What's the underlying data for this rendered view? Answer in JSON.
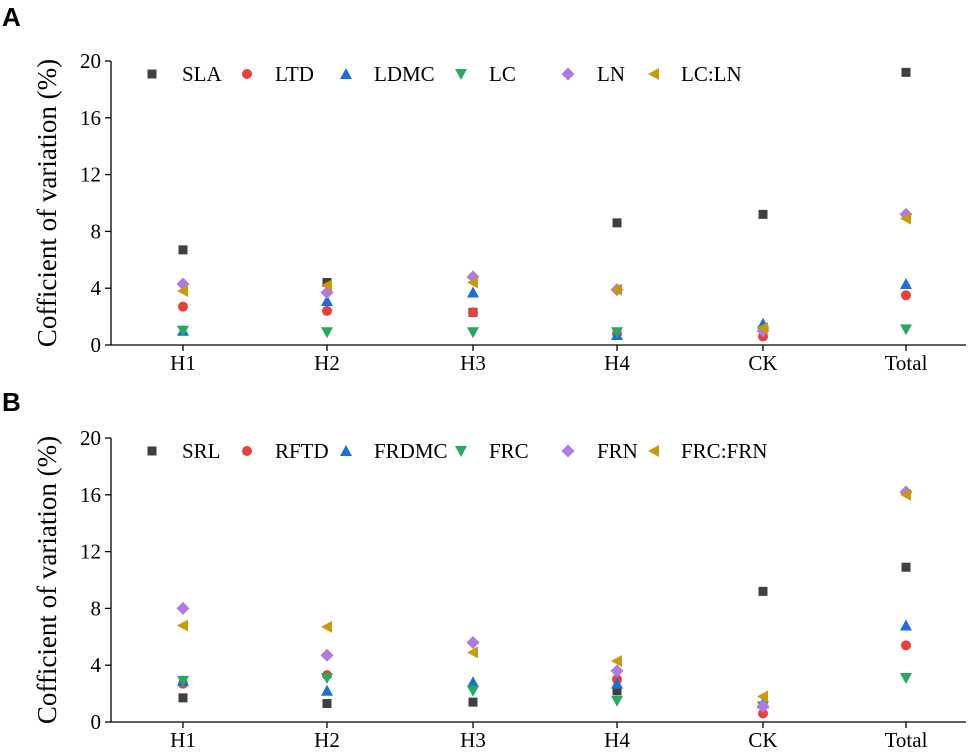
{
  "colors": {
    "marker_colors": [
      "#404040",
      "#e8413c",
      "#1c6fd6",
      "#26a961",
      "#b07be0",
      "#c99a0a"
    ],
    "marker_shapes": [
      "square",
      "circle",
      "triangle-up",
      "triangle-down",
      "diamond",
      "triangle-left"
    ]
  },
  "chart_data": [
    {
      "type": "scatter",
      "panel_label": "A",
      "ylabel": "Cofficient of variation (%)",
      "xlabel": "",
      "categories": [
        "H1",
        "H2",
        "H3",
        "H4",
        "CK",
        "Total"
      ],
      "ylim": [
        0,
        20
      ],
      "yticks": [
        "0",
        "4",
        "8",
        "12",
        "16",
        "20"
      ],
      "grid": false,
      "legend_position": "top-left, single row",
      "series": [
        {
          "name": "SLA",
          "values": [
            6.7,
            4.4,
            2.3,
            8.6,
            9.2,
            19.2
          ]
        },
        {
          "name": "LTD",
          "values": [
            2.7,
            2.4,
            2.3,
            0.8,
            0.6,
            3.5
          ]
        },
        {
          "name": "LDMC",
          "values": [
            1.0,
            3.1,
            3.7,
            0.7,
            1.5,
            4.3
          ]
        },
        {
          "name": "LC",
          "values": [
            1.0,
            0.9,
            0.9,
            0.9,
            1.0,
            1.1
          ]
        },
        {
          "name": "LN",
          "values": [
            4.3,
            3.7,
            4.8,
            3.9,
            1.0,
            9.2
          ]
        },
        {
          "name": "LC:LN",
          "values": [
            3.8,
            4.2,
            4.4,
            3.9,
            1.2,
            8.9
          ]
        }
      ]
    },
    {
      "type": "scatter",
      "panel_label": "B",
      "ylabel": "Cofficient of variation (%)",
      "xlabel": "",
      "categories": [
        "H1",
        "H2",
        "H3",
        "H4",
        "CK",
        "Total"
      ],
      "ylim": [
        0,
        20
      ],
      "yticks": [
        "0",
        "4",
        "8",
        "12",
        "16",
        "20"
      ],
      "grid": false,
      "legend_position": "top-left, single row",
      "series": [
        {
          "name": "SRL",
          "values": [
            1.7,
            1.3,
            1.4,
            2.2,
            9.2,
            10.9
          ]
        },
        {
          "name": "RFTD",
          "values": [
            2.7,
            3.3,
            2.5,
            3.0,
            0.6,
            5.4
          ]
        },
        {
          "name": "FRDMC",
          "values": [
            2.9,
            2.2,
            2.8,
            2.7,
            1.3,
            6.8
          ]
        },
        {
          "name": "FRC",
          "values": [
            2.9,
            3.1,
            2.2,
            1.5,
            1.1,
            3.1
          ]
        },
        {
          "name": "FRN",
          "values": [
            8.0,
            4.7,
            5.6,
            3.6,
            1.1,
            16.2
          ]
        },
        {
          "name": "FRC:FRN",
          "values": [
            6.8,
            6.7,
            4.9,
            4.3,
            1.8,
            16.0
          ]
        }
      ]
    }
  ]
}
